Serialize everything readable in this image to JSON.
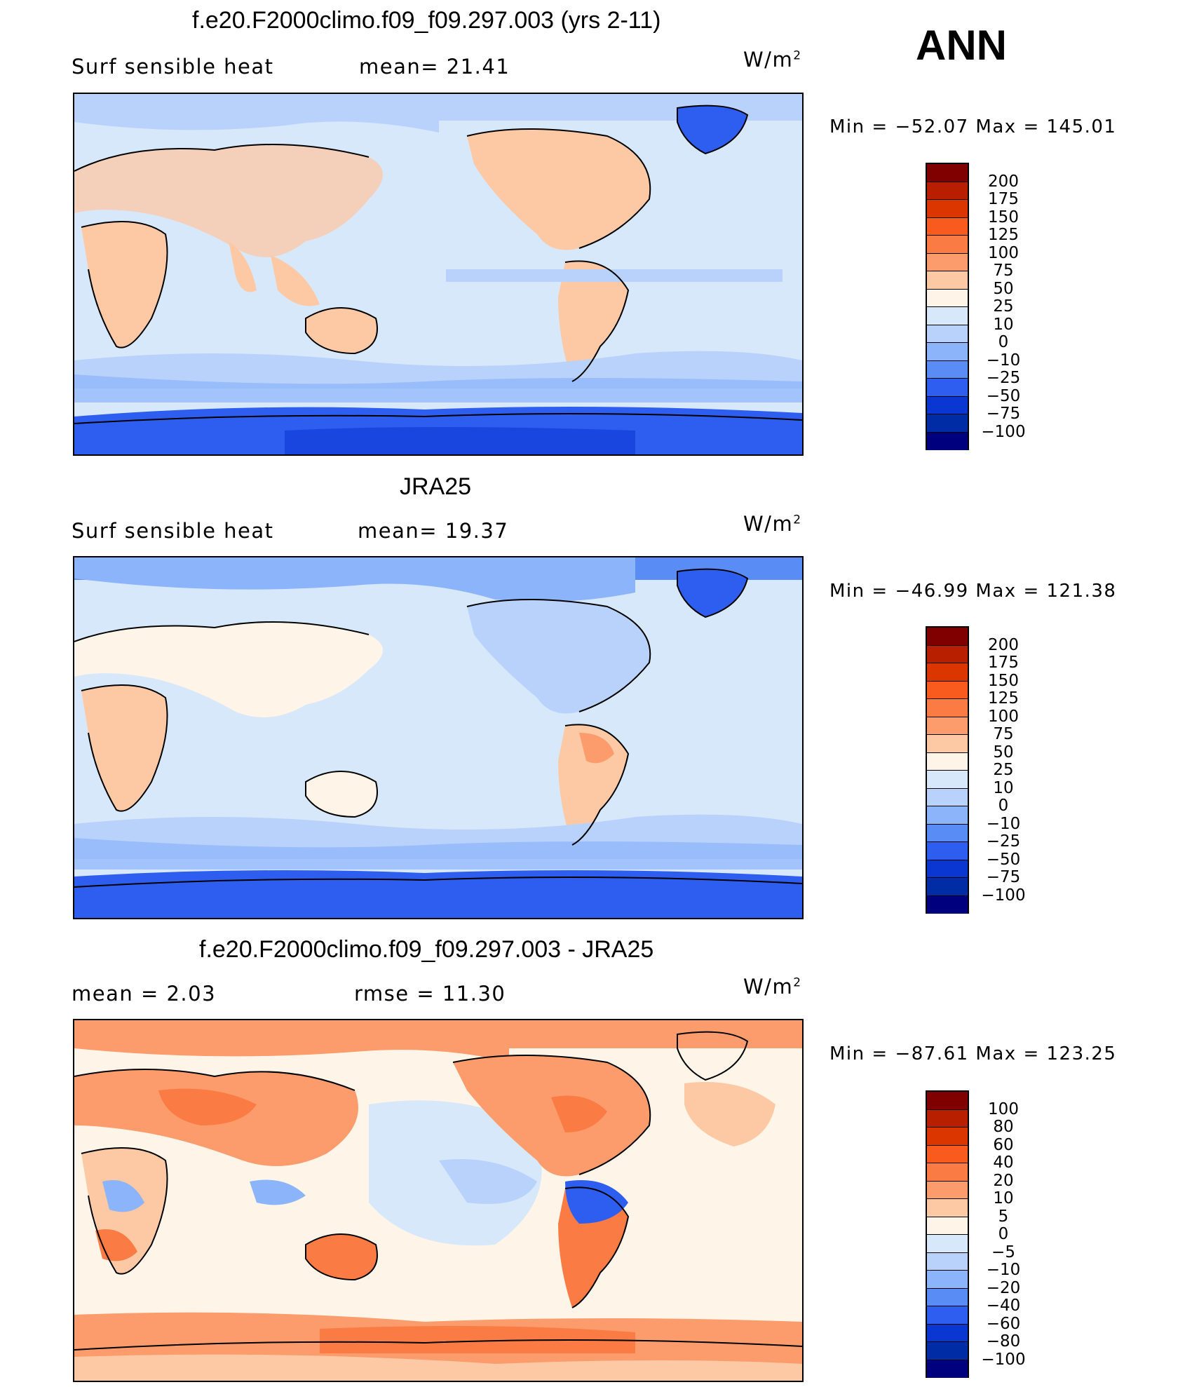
{
  "header": {
    "season": "ANN"
  },
  "units": "W/m",
  "units_exp": "2",
  "panels": [
    {
      "title": "f.e20.F2000climo.f09_f09.297.003 (yrs 2-11)",
      "left_label": "Surf  sensible  heat",
      "mid_label": "mean=   21.41",
      "minmax": "Min  =  −52.07  Max  =  145.01"
    },
    {
      "title": "JRA25",
      "left_label": "Surf  sensible  heat",
      "mid_label": "mean=   19.37",
      "minmax": "Min  =  −46.99  Max  =  121.38"
    },
    {
      "title": "f.e20.F2000climo.f09_f09.297.003 - JRA25",
      "left_label": "mean  =      2.03",
      "mid_label": "rmse  =     11.30",
      "minmax": "Min  =  −87.61  Max  =  123.25"
    }
  ],
  "colorbars": [
    {
      "labels": [
        "200",
        "175",
        "150",
        "125",
        "100",
        "75",
        "50",
        "25",
        "10",
        "0",
        "−10",
        "−25",
        "−50",
        "−75",
        "−100"
      ],
      "colors": [
        "#800000",
        "#b81e00",
        "#dc3600",
        "#f95a1e",
        "#fa7b44",
        "#fc9c6c",
        "#fdc8a4",
        "#fff4e8",
        "#d8e8fb",
        "#b8d2fb",
        "#8cb4fb",
        "#5a8cf5",
        "#2d5ef0",
        "#0a37d2",
        "#002da5",
        "#00007f"
      ]
    },
    {
      "labels": [
        "200",
        "175",
        "150",
        "125",
        "100",
        "75",
        "50",
        "25",
        "10",
        "0",
        "−10",
        "−25",
        "−50",
        "−75",
        "−100"
      ],
      "colors": [
        "#800000",
        "#b81e00",
        "#dc3600",
        "#f95a1e",
        "#fa7b44",
        "#fc9c6c",
        "#fdc8a4",
        "#fff4e8",
        "#d8e8fb",
        "#b8d2fb",
        "#8cb4fb",
        "#5a8cf5",
        "#2d5ef0",
        "#0a37d2",
        "#002da5",
        "#00007f"
      ]
    },
    {
      "labels": [
        "100",
        "80",
        "60",
        "40",
        "20",
        "10",
        "5",
        "0",
        "−5",
        "−10",
        "−20",
        "−40",
        "−60",
        "−80",
        "−100"
      ],
      "colors": [
        "#800000",
        "#b81e00",
        "#dc3600",
        "#f95a1e",
        "#fa7b44",
        "#fc9c6c",
        "#fdc8a4",
        "#fff4e8",
        "#d8e8fb",
        "#b8d2fb",
        "#8cb4fb",
        "#5a8cf5",
        "#2d5ef0",
        "#0a37d2",
        "#002da5",
        "#00007f"
      ]
    }
  ],
  "chart_data": [
    {
      "type": "heatmap",
      "title": "f.e20.F2000climo.f09_f09.297.003 (yrs 2-11)",
      "variable": "Surf  sensible  heat",
      "units": "W/m2",
      "mean": 21.41,
      "min": -52.07,
      "max": 145.01,
      "levels": [
        -100,
        -75,
        -50,
        -25,
        -10,
        0,
        10,
        25,
        50,
        75,
        100,
        125,
        150,
        175,
        200
      ]
    },
    {
      "type": "heatmap",
      "title": "JRA25",
      "variable": "Surf  sensible  heat",
      "units": "W/m2",
      "mean": 19.37,
      "min": -46.99,
      "max": 121.38,
      "levels": [
        -100,
        -75,
        -50,
        -25,
        -10,
        0,
        10,
        25,
        50,
        75,
        100,
        125,
        150,
        175,
        200
      ]
    },
    {
      "type": "heatmap",
      "title": "f.e20.F2000climo.f09_f09.297.003 - JRA25",
      "units": "W/m2",
      "mean": 2.03,
      "rmse": 11.3,
      "min": -87.61,
      "max": 123.25,
      "levels": [
        -100,
        -80,
        -60,
        -40,
        -20,
        -10,
        -5,
        0,
        5,
        10,
        20,
        40,
        60,
        80,
        100
      ]
    }
  ]
}
